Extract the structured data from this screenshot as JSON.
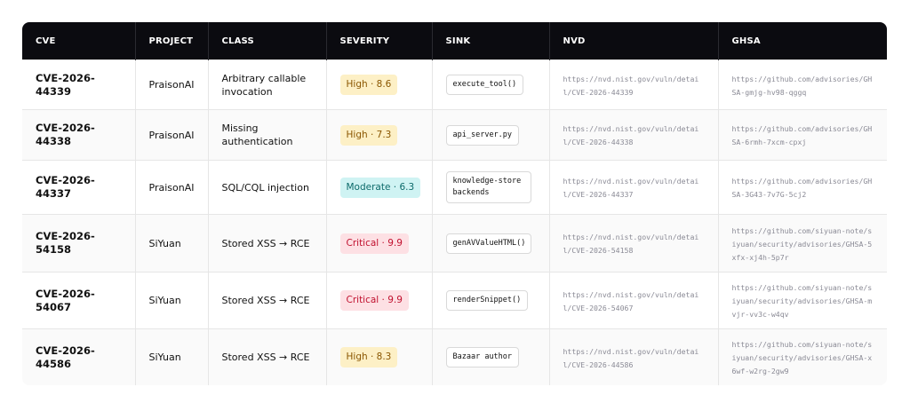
{
  "table": {
    "columns": [
      "CVE",
      "PROJECT",
      "CLASS",
      "SEVERITY",
      "SINK",
      "NVD",
      "GHSA"
    ],
    "rows": [
      [
        "CVE-2026-44339",
        "PraisonAI",
        "Arbitrary callable invocation",
        "High · 8.6",
        "execute_tool()",
        "https://nvd.nist.gov/vuln/detail/CVE-2026-44339",
        "https://github.com/advisories/GHSA-gmjg-hv98-qggq"
      ],
      [
        "CVE-2026-44338",
        "PraisonAI",
        "Missing authentication",
        "High · 7.3",
        "api_server.py",
        "https://nvd.nist.gov/vuln/detail/CVE-2026-44338",
        "https://github.com/advisories/GHSA-6rmh-7xcm-cpxj"
      ],
      [
        "CVE-2026-44337",
        "PraisonAI",
        "SQL/CQL injection",
        "Moderate · 6.3",
        "knowledge-store backends",
        "https://nvd.nist.gov/vuln/detail/CVE-2026-44337",
        "https://github.com/advisories/GHSA-3G43-7v7G-5cj2"
      ],
      [
        "CVE-2026-54158",
        "SiYuan",
        "Stored XSS → RCE",
        "Critical · 9.9",
        "genAVValueHTML()",
        "https://nvd.nist.gov/vuln/detail/CVE-2026-54158",
        "https://github.com/siyuan-note/siyuan/security/advisories/GHSA-5xfx-xj4h-5p7r"
      ],
      [
        "CVE-2026-54067",
        "SiYuan",
        "Stored XSS → RCE",
        "Critical · 9.9",
        "renderSnippet()",
        "https://nvd.nist.gov/vuln/detail/CVE-2026-54067",
        "https://github.com/siyuan-note/siyuan/security/advisories/GHSA-mvjr-vv3c-w4qv"
      ],
      [
        "CVE-2026-44586",
        "SiYuan",
        "Stored XSS → RCE",
        "High · 8.3",
        "Bazaar author",
        "https://nvd.nist.gov/vuln/detail/CVE-2026-44586",
        "https://github.com/siyuan-note/siyuan/security/advisories/GHSA-x6wf-w2rg-2gw9"
      ]
    ]
  }
}
